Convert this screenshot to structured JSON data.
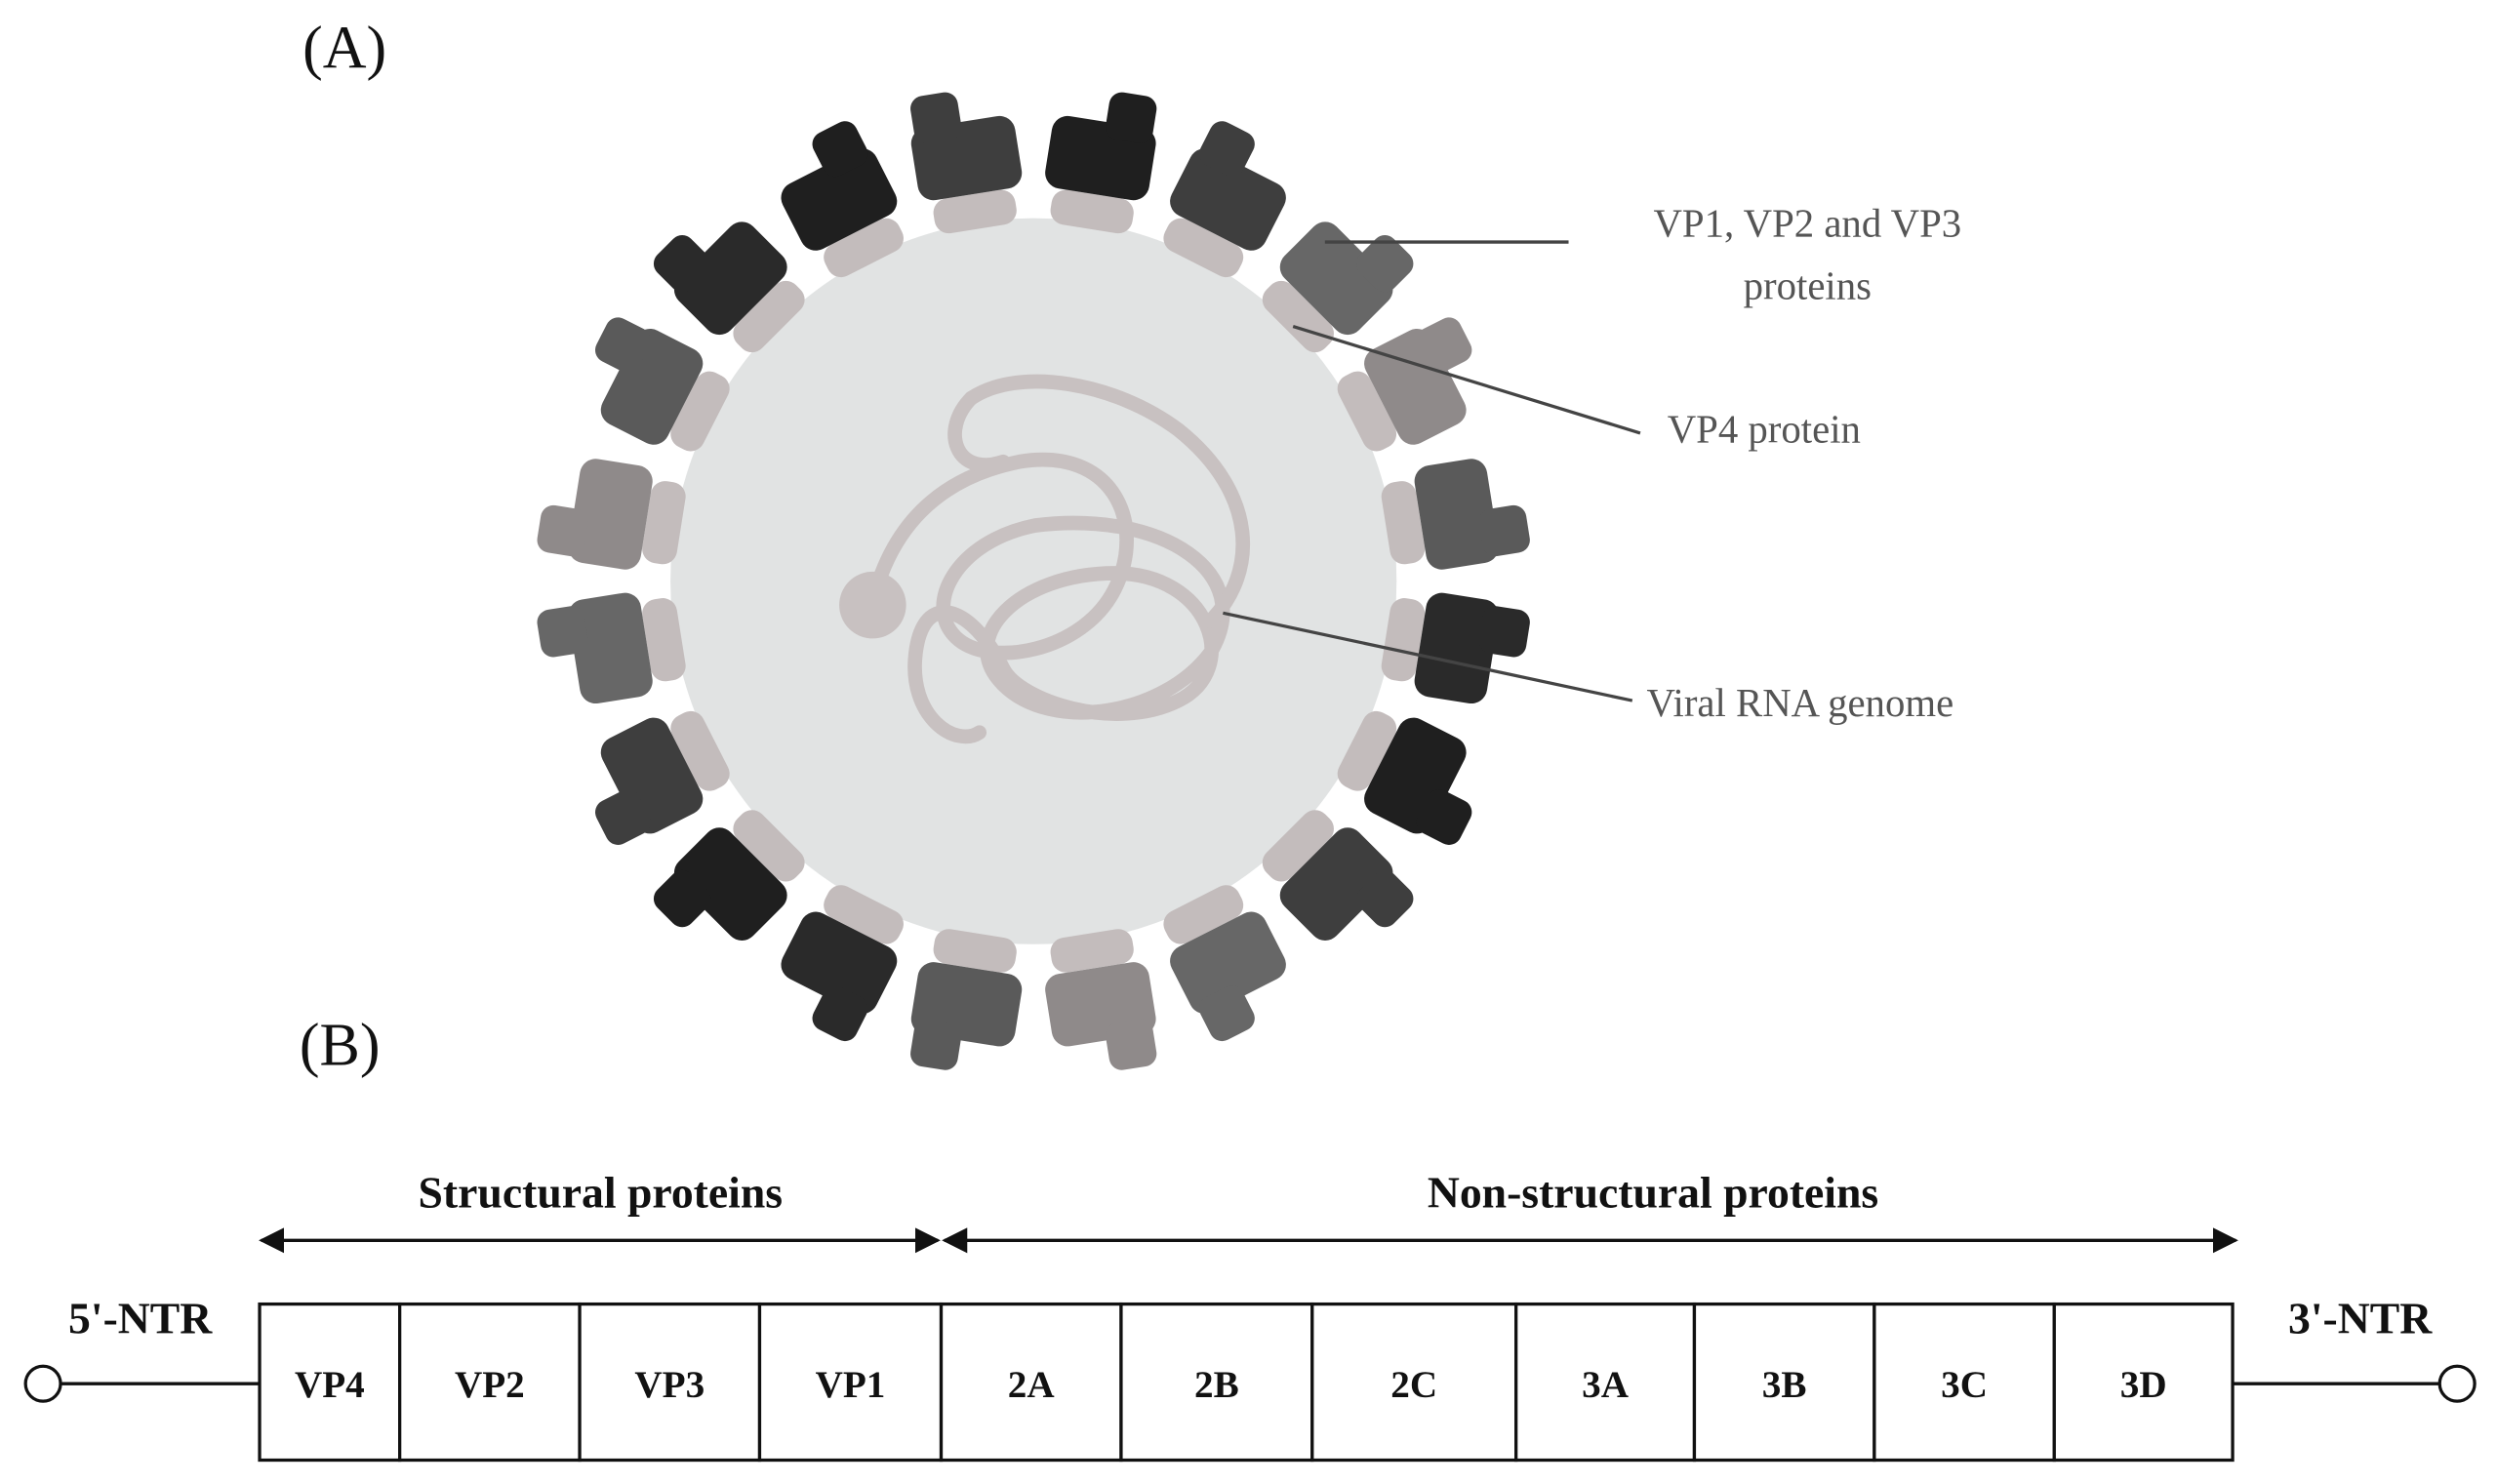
{
  "panel_a": {
    "label": "(A)",
    "annotations": [
      {
        "lines": [
          "VP1, VP2 and VP3",
          "proteins"
        ]
      },
      {
        "lines": [
          "VP4 protein"
        ]
      },
      {
        "lines": [
          "Viral RNA genome"
        ]
      }
    ]
  },
  "panel_b": {
    "label": "(B)",
    "structural_label": "Structural proteins",
    "non_structural_label": "Non-structural proteins",
    "five_prime": "5'-NTR",
    "three_prime": "3'-NTR",
    "segments": [
      "VP4",
      "VP2",
      "VP3",
      "VP1",
      "2A",
      "2B",
      "2C",
      "3A",
      "3B",
      "3C",
      "3D"
    ]
  }
}
